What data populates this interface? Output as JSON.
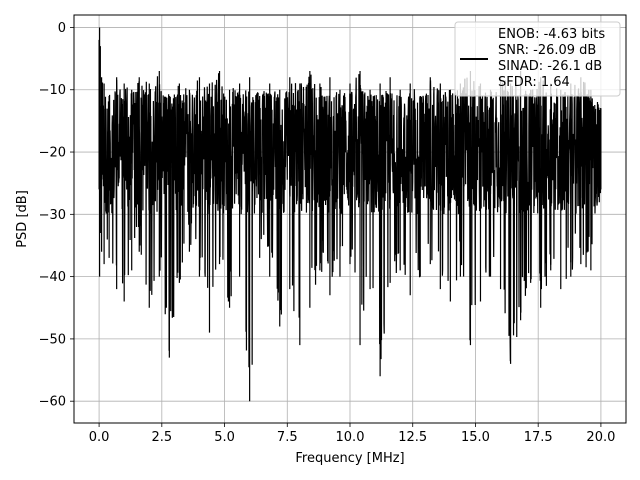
{
  "chart_data": {
    "type": "line",
    "title": "",
    "xlabel": "Frequency [MHz]",
    "ylabel": "PSD [dB]",
    "xlim": [
      -1.0,
      21.0
    ],
    "ylim": [
      -63.5,
      2.0
    ],
    "grid": true,
    "x_ticks": [
      0.0,
      2.5,
      5.0,
      7.5,
      10.0,
      12.5,
      15.0,
      17.5,
      20.0
    ],
    "x_tick_labels": [
      "0.0",
      "2.5",
      "5.0",
      "7.5",
      "10.0",
      "12.5",
      "15.0",
      "17.5",
      "20.0"
    ],
    "y_ticks": [
      0,
      -10,
      -20,
      -30,
      -40,
      -50,
      -60
    ],
    "y_tick_labels": [
      "0",
      "−10",
      "−20",
      "−30",
      "−40",
      "−50",
      "−60"
    ],
    "legend_position": "top-right",
    "legend": {
      "entries": [
        "ENOB: -4.63 bits",
        "SNR: -26.09 dB",
        "SINAD: -26.1 dB",
        "SFDR: 1.64"
      ]
    },
    "series": [
      {
        "color": "#000000",
        "points_note_fields": [
          "x",
          "upper",
          "lower"
        ],
        "x": [
          0.0,
          0.02,
          0.05,
          0.1,
          0.2,
          0.4,
          0.7,
          1.0,
          1.3,
          1.6,
          2.0,
          2.4,
          2.8,
          3.2,
          3.6,
          4.0,
          4.4,
          4.8,
          5.2,
          5.6,
          6.0,
          6.4,
          6.8,
          7.2,
          7.6,
          8.0,
          8.4,
          8.8,
          9.2,
          9.6,
          10.0,
          10.4,
          10.8,
          11.2,
          11.6,
          12.0,
          12.4,
          12.8,
          13.2,
          13.6,
          14.0,
          14.4,
          14.8,
          15.2,
          15.6,
          16.0,
          16.4,
          16.8,
          17.2,
          17.6,
          18.0,
          18.4,
          18.8,
          19.2,
          19.6,
          20.0
        ],
        "upper": [
          -2,
          0,
          -3,
          -8,
          -9,
          -11,
          -8,
          -9,
          -10,
          -8,
          -9,
          -7,
          -11,
          -9,
          -10,
          -8,
          -9,
          -7,
          -10,
          -9,
          -8,
          -11,
          -9,
          -10,
          -8,
          -9,
          -7,
          -9,
          -8,
          -10,
          -9,
          -7,
          -10,
          -9,
          -8,
          -10,
          -9,
          -11,
          -8,
          -9,
          -10,
          -9,
          -7,
          -9,
          -10,
          -8,
          -9,
          -7,
          -10,
          -8,
          -9,
          -10,
          -9,
          -8,
          -10,
          -13
        ],
        "lower": [
          -26,
          -40,
          -33,
          -36,
          -38,
          -37,
          -42,
          -44,
          -39,
          -36,
          -45,
          -40,
          -53,
          -41,
          -36,
          -40,
          -49,
          -38,
          -45,
          -40,
          -60,
          -37,
          -40,
          -48,
          -42,
          -51,
          -45,
          -39,
          -43,
          -40,
          -38,
          -51,
          -42,
          -56,
          -41,
          -39,
          -43,
          -40,
          -38,
          -42,
          -44,
          -40,
          -51,
          -44,
          -40,
          -42,
          -54,
          -47,
          -41,
          -45,
          -39,
          -42,
          -40,
          -38,
          -39,
          -26
        ]
      }
    ]
  }
}
